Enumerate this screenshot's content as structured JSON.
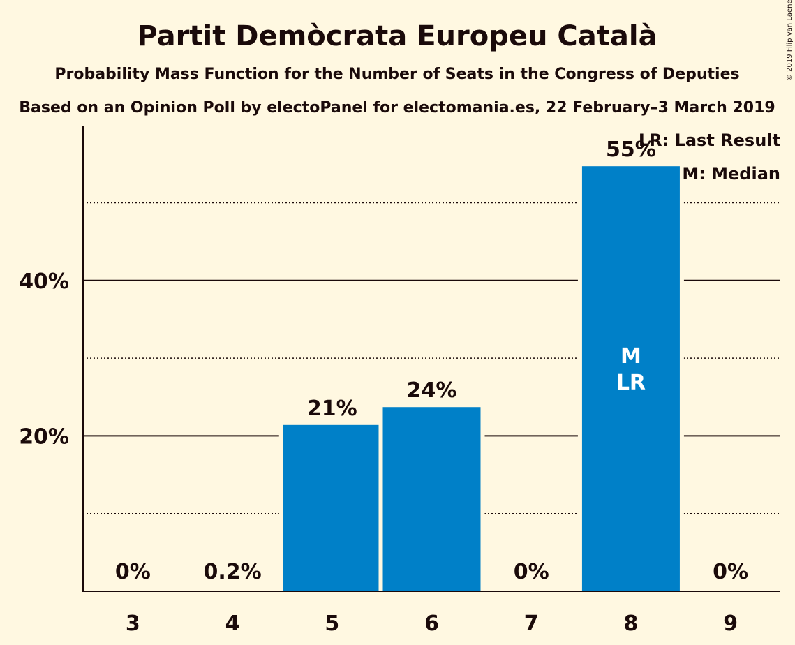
{
  "copyright": "© 2019 Filip van Laenen",
  "colors": {
    "bar": "#0080c8",
    "background": "#fff8e1",
    "text": "#1a0a0a"
  },
  "chart_data": {
    "type": "bar",
    "title": "Partit Demòcrata Europeu Català",
    "subtitle": "Probability Mass Function for the Number of Seats in the Congress of Deputies",
    "subtitle2": "Based on an Opinion Poll by electoPanel for electomania.es, 22 February–3 March 2019",
    "categories": [
      "3",
      "4",
      "5",
      "6",
      "7",
      "8",
      "9"
    ],
    "values": [
      0,
      0.2,
      21.4,
      23.7,
      0,
      54.7,
      0
    ],
    "data_labels": [
      "0%",
      "0.2%",
      "21%",
      "24%",
      "0%",
      "55%",
      "0%"
    ],
    "ylim": [
      0,
      60
    ],
    "yticks": [
      {
        "value": 20,
        "label": "20%"
      },
      {
        "value": 40,
        "label": "40%"
      }
    ],
    "minor_gridlines": [
      10,
      30,
      50
    ],
    "markers": {
      "category": "8",
      "lines": [
        "M",
        "LR"
      ]
    },
    "legend": [
      "LR: Last Result",
      "M: Median"
    ],
    "legend_position": "top-right",
    "grid": true
  }
}
